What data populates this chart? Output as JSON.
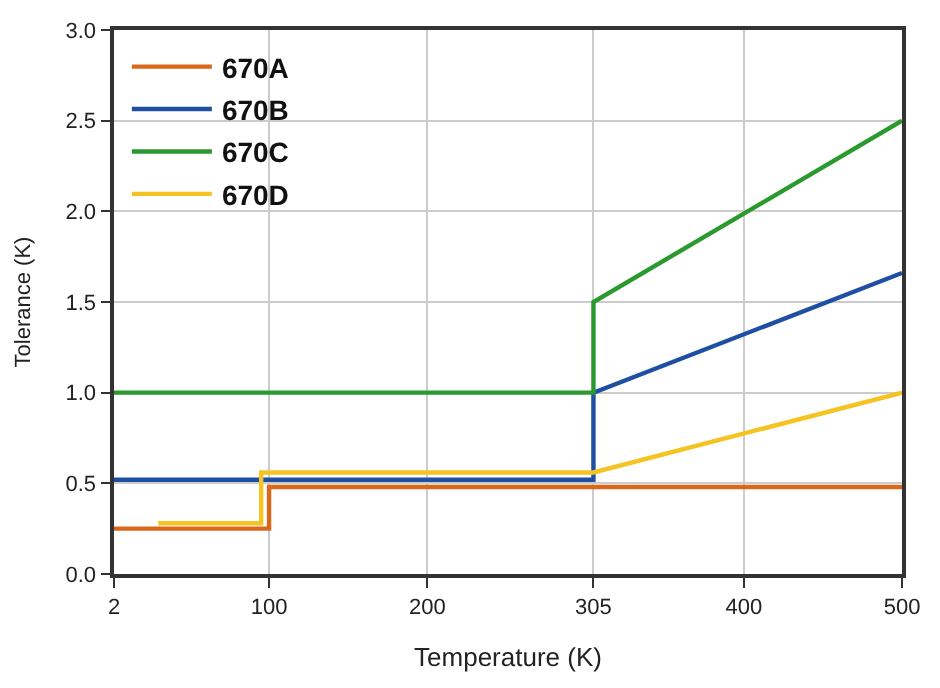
{
  "chart_data": {
    "type": "line",
    "xlabel": "Temperature (K)",
    "ylabel": "Tolerance (K)",
    "xlim": [
      2,
      500
    ],
    "xticks": [
      2,
      100,
      200,
      305,
      400,
      500
    ],
    "ylim": [
      0,
      3
    ],
    "yticks": [
      {
        "value": 0,
        "label": "0.0"
      },
      {
        "value": 0.5,
        "label": "0.5"
      },
      {
        "value": 1,
        "label": "1.0"
      },
      {
        "value": 1.5,
        "label": "1.5"
      },
      {
        "value": 2,
        "label": "2.0"
      },
      {
        "value": 2.5,
        "label": "2.5"
      },
      {
        "value": 3,
        "label": "3.0"
      }
    ],
    "grid": true,
    "legend": "top left",
    "marker": "none",
    "line_style": "solid",
    "series": [
      {
        "name": "670A",
        "color": "#d9681c",
        "x": [
          2,
          100,
          100,
          500
        ],
        "values": [
          0.25,
          0.25,
          0.48,
          0.48
        ]
      },
      {
        "name": "670B",
        "color": "#1f4fa3",
        "x": [
          2,
          305,
          305,
          500
        ],
        "values": [
          0.52,
          0.52,
          1.0,
          1.66
        ]
      },
      {
        "name": "670C",
        "color": "#2a9a2e",
        "x": [
          2,
          305,
          305,
          500
        ],
        "values": [
          1.0,
          1.0,
          1.5,
          2.5
        ]
      },
      {
        "name": "670D",
        "color": "#f5c423",
        "x": [
          30,
          95,
          95,
          305,
          500
        ],
        "values": [
          0.28,
          0.28,
          0.56,
          0.56,
          1.0
        ]
      }
    ]
  }
}
